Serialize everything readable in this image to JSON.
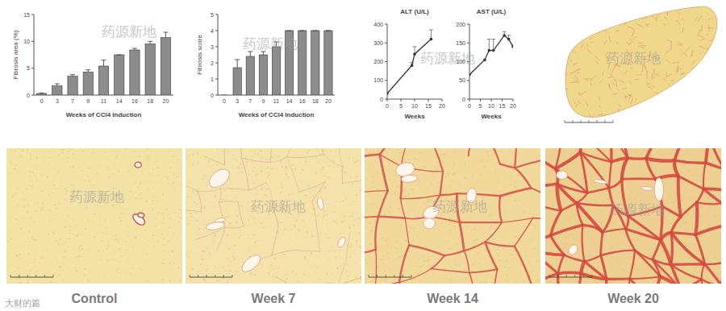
{
  "chart_data": [
    {
      "type": "bar",
      "y_label": "Fibrosis area (%)",
      "x_label": "Weeks of CCl4 Induction",
      "categories": [
        "0",
        "3",
        "7",
        "9",
        "11",
        "14",
        "16",
        "18",
        "20"
      ],
      "values": [
        0.3,
        1.7,
        3.5,
        4.3,
        5.4,
        7.5,
        8.4,
        9.5,
        10.7
      ],
      "errors": [
        0.1,
        0.4,
        0.3,
        0.4,
        1.1,
        0,
        0.3,
        0.5,
        1.0
      ],
      "color": "#8c8c8c",
      "ylim": [
        0,
        15
      ],
      "yticks": [
        0,
        5,
        10,
        15
      ]
    },
    {
      "type": "bar",
      "y_label": "Fibrosis score",
      "x_label": "Weeks of CCl4 Induction",
      "categories": [
        "0",
        "3",
        "7",
        "9",
        "11",
        "14",
        "16",
        "18",
        "20"
      ],
      "values": [
        0,
        1.7,
        2.4,
        2.5,
        3.0,
        4,
        4,
        4,
        4
      ],
      "errors": [
        0,
        0.5,
        0.3,
        0.2,
        0.3,
        0,
        0,
        0,
        0
      ],
      "color": "#8c8c8c",
      "ylim": [
        0,
        5
      ],
      "yticks": [
        0,
        1,
        2,
        3,
        4,
        5
      ]
    },
    {
      "type": "line",
      "title": "ALT (U/L)",
      "x_label": "Weeks",
      "x": [
        0,
        9,
        10,
        16
      ],
      "values": [
        30,
        180,
        240,
        320
      ],
      "errors": [
        0,
        15,
        40,
        50
      ],
      "color": "#333333",
      "marker": "circle",
      "line_style": "solid",
      "xlim": [
        0,
        20
      ],
      "xticks": [
        0,
        5,
        10,
        15,
        20
      ],
      "ylim": [
        0,
        400
      ],
      "yticks": [
        0,
        100,
        200,
        300,
        400
      ]
    },
    {
      "type": "line",
      "title": "AST (U/L)",
      "x_label": "Weeks",
      "x": [
        0,
        7,
        9,
        11,
        16,
        18,
        20
      ],
      "values": [
        65,
        105,
        130,
        130,
        170,
        160,
        140
      ],
      "errors": [
        0,
        0,
        30,
        30,
        10,
        10,
        5
      ],
      "color": "#333333",
      "marker": "circle",
      "line_style": "solid",
      "xlim": [
        0,
        20
      ],
      "xticks": [
        0,
        5,
        10,
        15,
        20
      ],
      "ylim": [
        0,
        200
      ],
      "yticks": [
        0,
        50,
        100,
        150,
        200
      ]
    }
  ],
  "panels": [
    {
      "label": "Control"
    },
    {
      "label": "Week 7"
    },
    {
      "label": "Week 14"
    },
    {
      "label": "Week 20"
    }
  ],
  "watermark": "药源新地",
  "source_mark": "大财的篇"
}
